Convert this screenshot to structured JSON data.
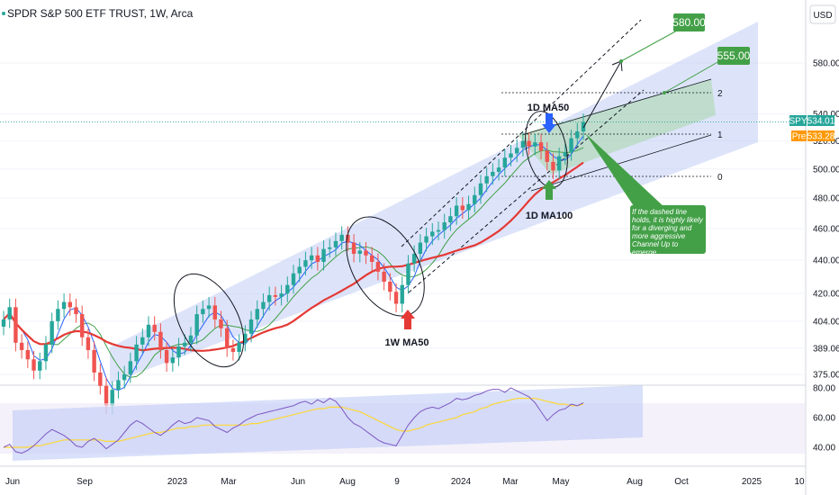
{
  "header": {
    "title": "SPDR S&P 500 ETF TRUST, 1W, Arca",
    "currency": "USD"
  },
  "colors": {
    "up": "#26a69a",
    "down": "#ef5350",
    "ma_fast": "#2962ff",
    "ma_mid": "#43a047",
    "ma_slow": "#e53935",
    "channel": "#b3c3f5",
    "rsi": "#7e57c2",
    "rsi_ma": "#fdd835",
    "annotation_green": "#43a047"
  },
  "chart_data": [
    {
      "type": "candlestick",
      "title": "SPDR S&P 500 ETF TRUST, 1W, Arca",
      "y_axis_ticks": [
        375.0,
        389.06,
        404.0,
        420.0,
        440.0,
        460.0,
        480.0,
        500.0,
        520.0,
        540.0,
        580.0
      ],
      "y_axis_tick_labels": [
        "375.00",
        "389.06",
        "404.00",
        "420.00",
        "440.00",
        "460.00",
        "480.00",
        "500.00",
        "520.00",
        "540.00",
        "580.00"
      ],
      "x_axis_tick_labels": [
        "Jun",
        "Sep",
        "2023",
        "Mar",
        "Jun",
        "Aug",
        "9",
        "2024",
        "Mar",
        "May",
        "Aug",
        "Oct",
        "2025",
        "10"
      ],
      "ylim": [
        368,
        620
      ],
      "scale": "log",
      "price_tags": [
        {
          "label": "SPY",
          "value": 534.01,
          "display": "534.01"
        },
        {
          "label": "Pre",
          "value": 533.28,
          "display": "533.28"
        }
      ],
      "targets": [
        {
          "value": 580.0,
          "display": "580.00"
        },
        {
          "value": 555.0,
          "display": "555.00"
        }
      ],
      "fib_levels": [
        "2",
        "1",
        "0"
      ],
      "annotations": [
        {
          "text": "1D MA50"
        },
        {
          "text": "1D MA100"
        },
        {
          "text": "1W MA50"
        },
        {
          "text": "If the dashed line holds, it is highly likely for a diverging and more aggressive Channel Up to emerge"
        }
      ],
      "weekly_close": [
        405,
        412,
        392,
        388,
        383,
        377,
        382,
        391,
        404,
        411,
        415,
        412,
        408,
        395,
        388,
        376,
        369,
        359,
        367,
        372,
        375,
        382,
        391,
        395,
        402,
        398,
        388,
        381,
        384,
        390,
        392,
        396,
        408,
        411,
        413,
        405,
        400,
        389,
        387,
        392,
        397,
        405,
        411,
        415,
        419,
        418,
        420,
        425,
        432,
        436,
        440,
        443,
        439,
        447,
        448,
        452,
        456,
        451,
        444,
        446,
        443,
        439,
        433,
        427,
        421,
        414,
        425,
        438,
        444,
        451,
        455,
        458,
        459,
        464,
        468,
        475,
        472,
        476,
        482,
        490,
        495,
        498,
        501,
        508,
        511,
        515,
        520,
        516,
        519,
        513,
        505,
        499,
        509,
        512,
        522,
        527,
        534
      ]
    },
    {
      "type": "line",
      "title": "RSI",
      "y_axis_ticks": [
        40.0,
        60.0,
        80.0
      ],
      "y_axis_tick_labels": [
        "40.00",
        "60.00",
        "80.00"
      ],
      "ylim": [
        30,
        85
      ],
      "series": [
        {
          "values": [
            40,
            42,
            37,
            36,
            38,
            41,
            45,
            49,
            52,
            50,
            48,
            45,
            41,
            40,
            44,
            46,
            43,
            39,
            42,
            45,
            50,
            55,
            58,
            56,
            53,
            50,
            48,
            51,
            55,
            58,
            56,
            57,
            60,
            59,
            58,
            54,
            52,
            50,
            53,
            55,
            58,
            60,
            62,
            63,
            64,
            65,
            66,
            67,
            68,
            70,
            71,
            69,
            72,
            70,
            73,
            71,
            66,
            60,
            56,
            54,
            51,
            48,
            45,
            43,
            42,
            41,
            48,
            55,
            60,
            64,
            66,
            67,
            66,
            68,
            70,
            73,
            72,
            73,
            75,
            76,
            78,
            79,
            79,
            77,
            80,
            78,
            76,
            74,
            70,
            64,
            58,
            62,
            65,
            66,
            69,
            68,
            70
          ]
        },
        {
          "values": [
            40,
            40,
            40,
            40,
            40,
            41,
            41,
            42,
            43,
            44,
            45,
            45,
            45,
            45,
            45,
            45,
            45,
            44,
            44,
            44,
            45,
            46,
            47,
            48,
            49,
            50,
            50,
            51,
            52,
            53,
            53,
            54,
            54,
            55,
            55,
            55,
            55,
            55,
            55,
            55,
            55,
            56,
            56,
            57,
            58,
            59,
            60,
            61,
            62,
            63,
            64,
            65,
            66,
            66,
            67,
            67,
            67,
            66,
            65,
            64,
            62,
            60,
            58,
            56,
            54,
            52,
            51,
            51,
            52,
            53,
            55,
            56,
            57,
            58,
            59,
            60,
            62,
            63,
            64,
            66,
            67,
            69,
            70,
            71,
            72,
            73,
            73,
            73,
            73,
            72,
            71,
            70,
            69,
            69,
            68,
            68,
            69
          ]
        }
      ]
    }
  ]
}
